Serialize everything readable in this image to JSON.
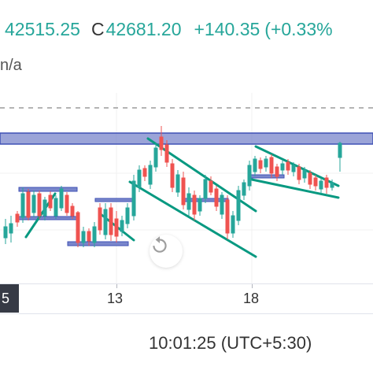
{
  "ohlc": {
    "open_value": "42515.25",
    "close_label": "C",
    "close_value": "42681.20",
    "change": "+140.35",
    "change_percent": "(+0.33%"
  },
  "study": {
    "value": "n/a"
  },
  "time_axis": {
    "partial_label": "5",
    "ticks": [
      "13",
      "18"
    ]
  },
  "status_bar": {
    "time": "10:01:25 (UTC+5:30)"
  },
  "colors": {
    "up": "#26a69a",
    "down": "#ef5350",
    "zone_fill": "#7986cb",
    "zone_border": "#3f51b5",
    "trendline": "#089981",
    "dashed_level": "#888888"
  },
  "icons": {
    "replay": "replay-icon"
  }
}
